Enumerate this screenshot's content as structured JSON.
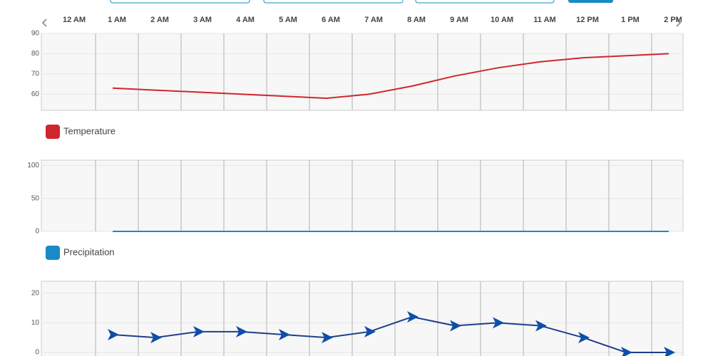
{
  "chart_data": [
    {
      "type": "line",
      "categories": [
        "12 AM",
        "1 AM",
        "2 AM",
        "3 AM",
        "4 AM",
        "5 AM",
        "6 AM",
        "7 AM",
        "8 AM",
        "9 AM",
        "10 AM",
        "11 AM",
        "12 PM",
        "1 PM",
        "2 PM"
      ],
      "series": [
        {
          "name": "Temperature",
          "color": "#d0262d",
          "values": [
            null,
            63,
            62,
            61,
            60,
            59,
            58,
            60,
            64,
            69,
            73,
            76,
            78,
            79,
            80
          ]
        }
      ],
      "ylim": [
        52,
        90
      ],
      "yticks": [
        60,
        70,
        80,
        90
      ],
      "grid": true
    },
    {
      "type": "line",
      "series": [
        {
          "name": "Precipitation",
          "color": "#1a8ac6",
          "values": [
            null,
            0,
            0,
            0,
            0,
            0,
            0,
            0,
            0,
            0,
            0,
            0,
            0,
            0,
            0
          ]
        }
      ],
      "ylim": [
        0,
        108
      ],
      "yticks": [
        0,
        50,
        100
      ],
      "grid": true
    },
    {
      "type": "arrow-line",
      "series": [
        {
          "color": "#1f3f8a",
          "values": [
            null,
            6,
            5,
            7,
            7,
            6,
            5,
            7,
            12,
            9,
            10,
            9,
            5,
            0,
            0
          ]
        }
      ],
      "ylim": [
        0,
        24
      ],
      "yticks": [
        0,
        10,
        20
      ],
      "grid": true
    }
  ]
}
